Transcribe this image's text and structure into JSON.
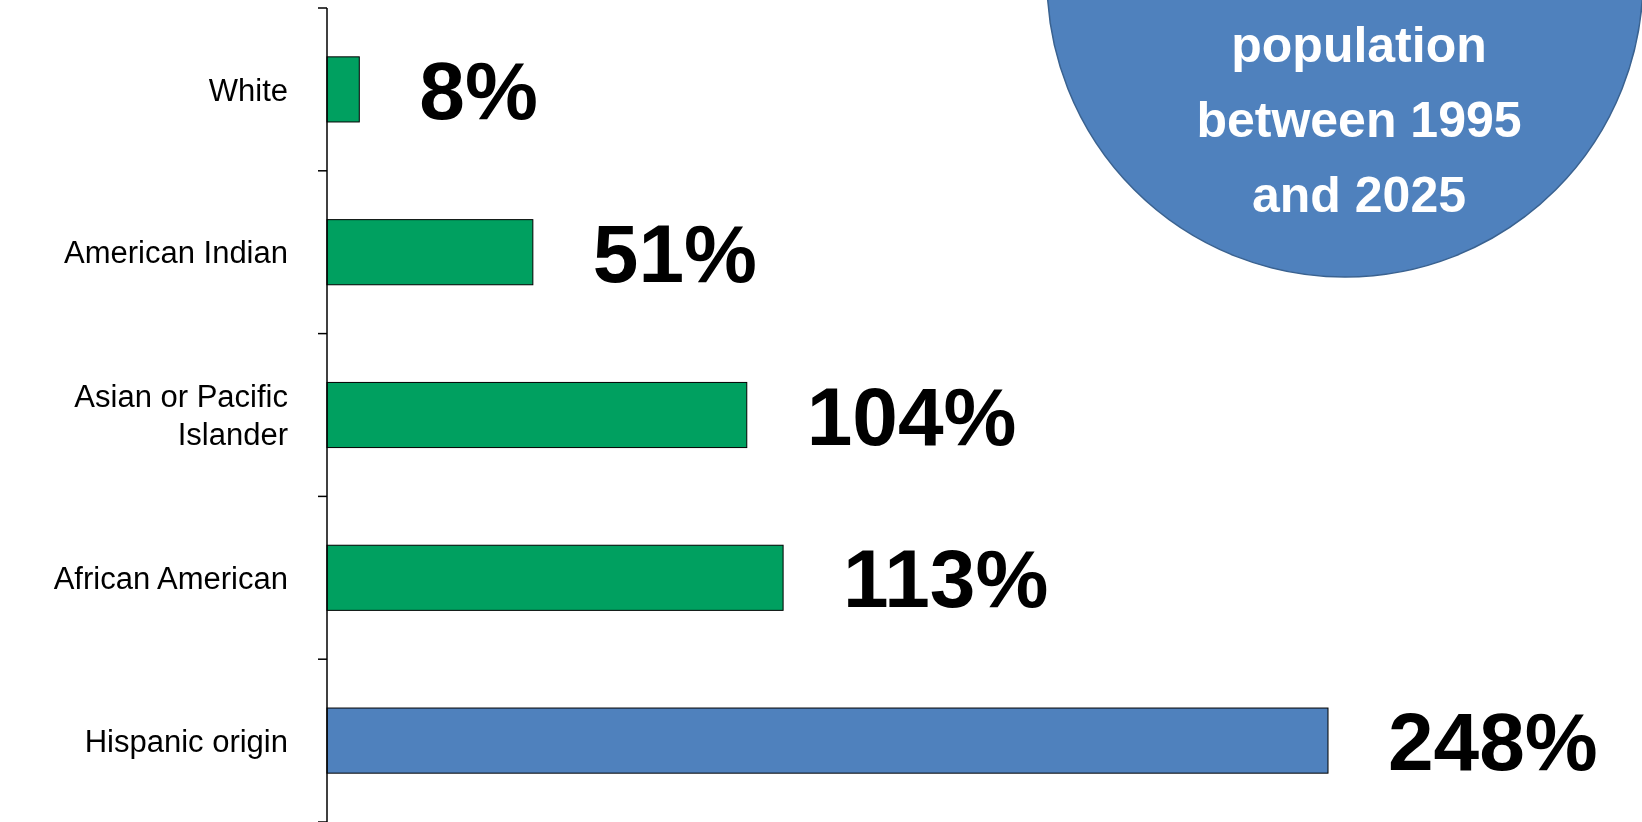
{
  "chart_data": {
    "type": "bar",
    "orientation": "horizontal",
    "categories": [
      "White",
      "American Indian",
      "Asian or Pacific Islander",
      "African American",
      "Hispanic origin"
    ],
    "values": [
      8,
      51,
      104,
      113,
      248
    ],
    "colors": [
      "#00a060",
      "#00a060",
      "#00a060",
      "#00a060",
      "#4f81bd"
    ],
    "value_labels": [
      "8%",
      "51%",
      "104%",
      "113%",
      "248%"
    ],
    "annotations": [
      "population between 1995 and 2025"
    ]
  }
}
